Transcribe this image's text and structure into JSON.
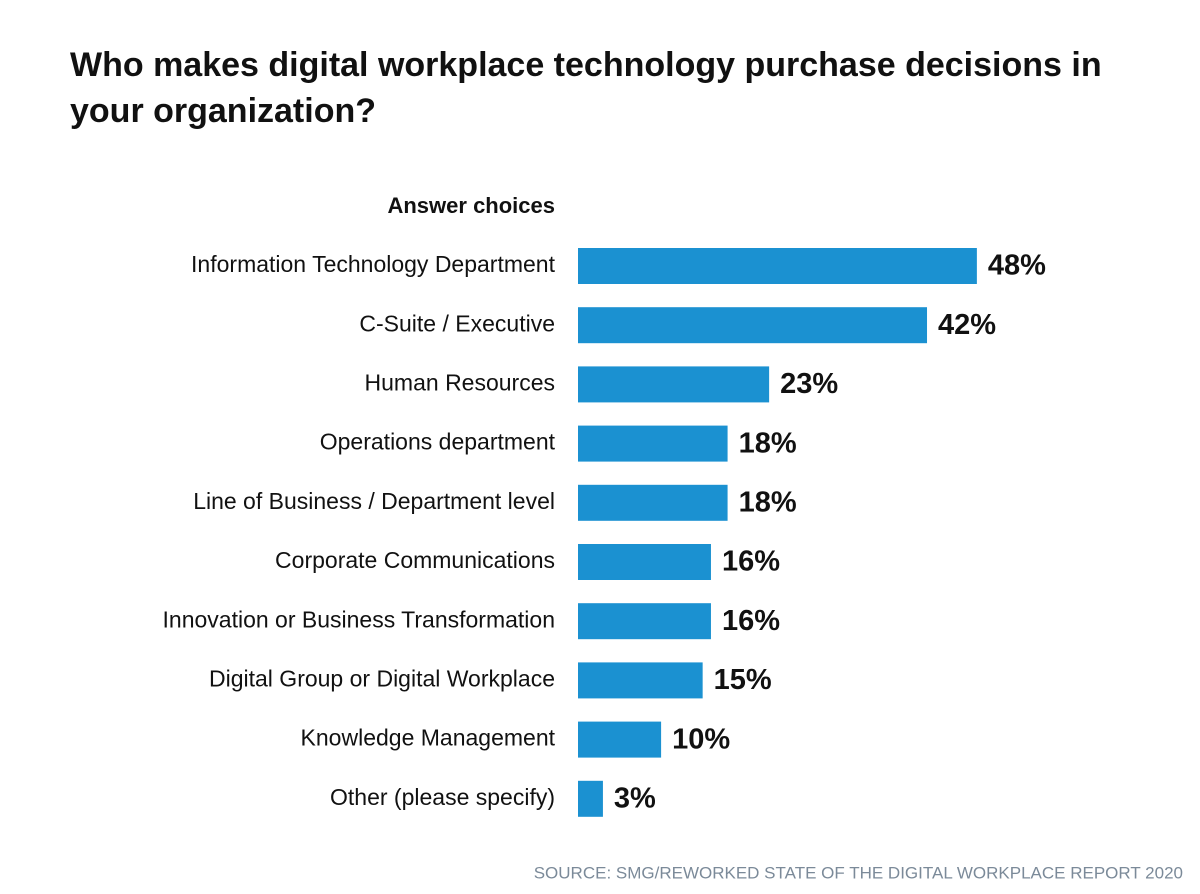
{
  "chart_data": {
    "type": "bar",
    "orientation": "horizontal",
    "title": "Who makes digital workplace technology purchase decisions in your organization?",
    "y_label": "Answer choices",
    "categories": [
      "Information Technology Department",
      "C-Suite / Executive",
      "Human Resources",
      "Operations department",
      "Line of Business / Department level",
      "Corporate Communications",
      "Innovation or Business Transformation",
      "Digital Group or Digital Workplace",
      "Knowledge Management",
      "Other (please specify)"
    ],
    "values": [
      48,
      42,
      23,
      18,
      18,
      16,
      16,
      15,
      10,
      3
    ],
    "value_labels": [
      "48%",
      "42%",
      "23%",
      "18%",
      "18%",
      "16%",
      "16%",
      "15%",
      "10%",
      "3%"
    ],
    "color": "#1b91d1",
    "source": "SOURCE: SMG/REWORKED STATE OF THE DIGITAL WORKPLACE REPORT 2020"
  }
}
